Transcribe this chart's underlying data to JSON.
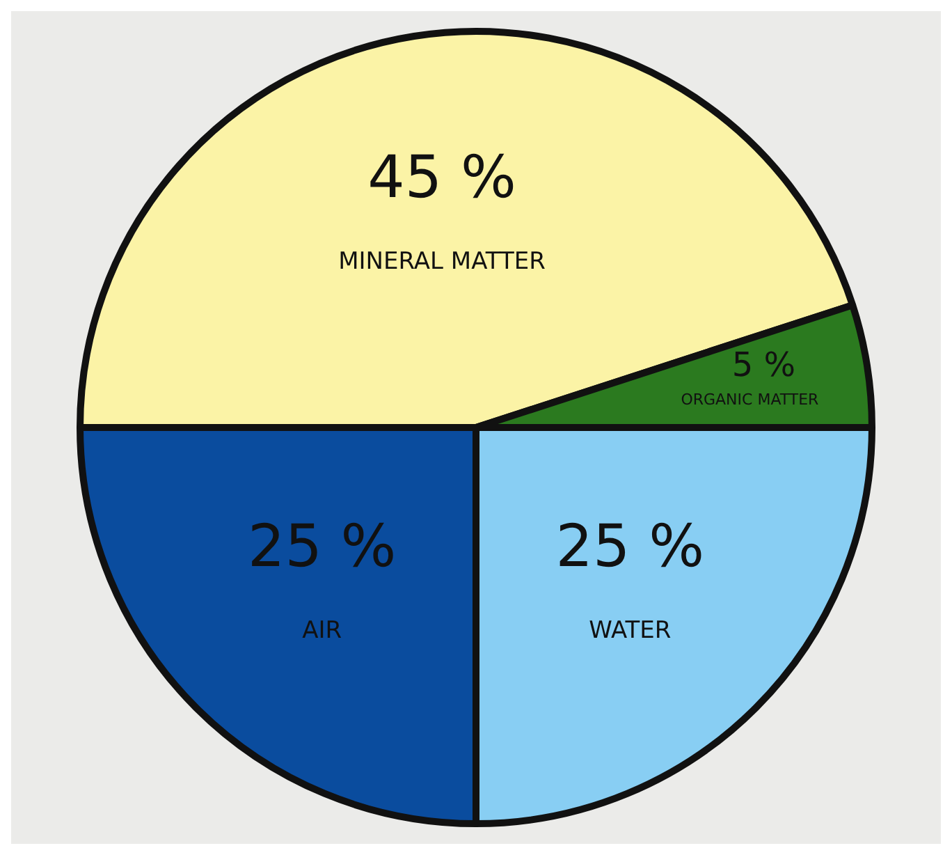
{
  "chart_data": {
    "type": "pie",
    "categories": [
      "MINERAL MATTER",
      "ORGANIC MATTER",
      "WATER",
      "AIR"
    ],
    "values": [
      45,
      5,
      25,
      25
    ],
    "colors": [
      "#fbf3a6",
      "#2b7a1f",
      "#88cef3",
      "#0a4c9e"
    ],
    "value_labels": [
      "45 %",
      "5 %",
      "25 %",
      "25 %"
    ],
    "legend": false
  }
}
